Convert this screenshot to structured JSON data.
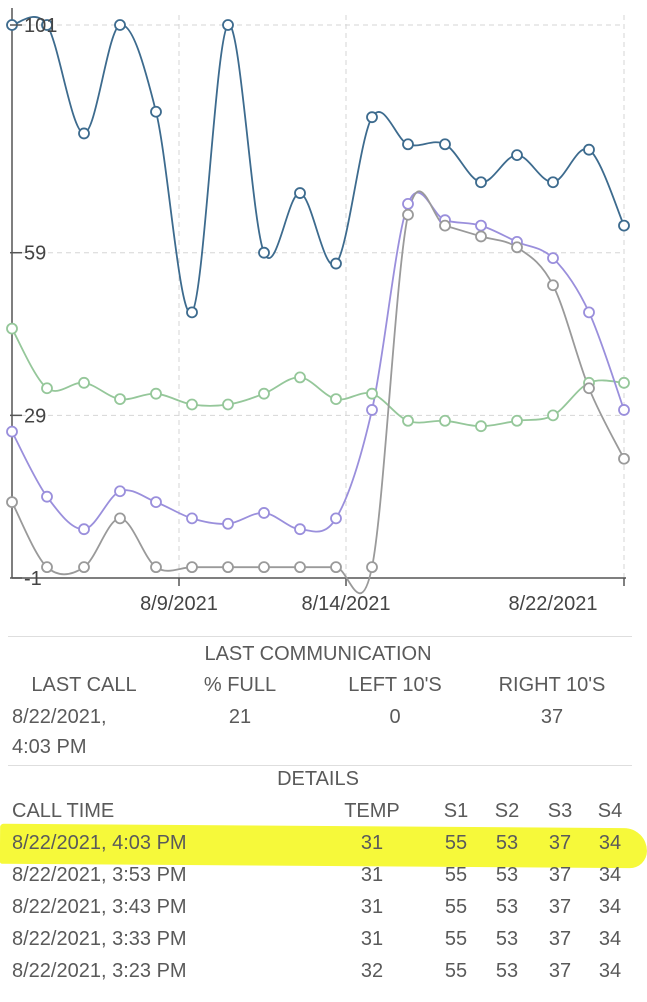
{
  "chart_data": {
    "type": "line",
    "y_ticks": [
      "101",
      "59",
      "29",
      "-1"
    ],
    "x_ticks": [
      "8/9/2021",
      "8/14/2021",
      "8/22/2021"
    ],
    "grid": true,
    "ylim": [
      -1,
      101
    ],
    "series": [
      {
        "color": "#3d6b8e",
        "values": [
          101,
          101,
          81,
          101,
          85,
          48,
          101,
          59,
          70,
          57,
          84,
          79,
          79,
          72,
          77,
          72,
          78,
          64
        ]
      },
      {
        "color": "#95c79a",
        "values": [
          45,
          34,
          35,
          32,
          33,
          31,
          31,
          33,
          36,
          32,
          33,
          28,
          28,
          27,
          28,
          29,
          35,
          35
        ]
      },
      {
        "color": "#9a8fdc",
        "values": [
          26,
          14,
          8,
          15,
          13,
          10,
          9,
          11,
          8,
          10,
          30,
          68,
          65,
          64,
          61,
          58,
          48,
          30
        ]
      },
      {
        "color": "#9a9a9a",
        "values": [
          13,
          1,
          1,
          10,
          1,
          1,
          1,
          1,
          1,
          1,
          1,
          66,
          64,
          62,
          60,
          53,
          34,
          21
        ]
      }
    ]
  },
  "last_comm": {
    "title": "LAST COMMUNICATION",
    "headers": [
      "LAST CALL",
      "% FULL",
      "LEFT 10'S",
      "RIGHT 10'S"
    ],
    "last_call_line1": "8/22/2021,",
    "last_call_line2": "4:03 PM",
    "pct_full": "21",
    "left_10s": "0",
    "right_10s": "37"
  },
  "details": {
    "title": "DETAILS",
    "headers": [
      "CALL TIME",
      "TEMP",
      "S1",
      "S2",
      "S3",
      "S4"
    ],
    "rows": [
      [
        "8/22/2021, 4:03 PM",
        "31",
        "55",
        "53",
        "37",
        "34"
      ],
      [
        "8/22/2021, 3:53 PM",
        "31",
        "55",
        "53",
        "37",
        "34"
      ],
      [
        "8/22/2021, 3:43 PM",
        "31",
        "55",
        "53",
        "37",
        "34"
      ],
      [
        "8/22/2021, 3:33 PM",
        "31",
        "55",
        "53",
        "37",
        "34"
      ],
      [
        "8/22/2021, 3:23 PM",
        "32",
        "55",
        "53",
        "37",
        "34"
      ]
    ]
  }
}
